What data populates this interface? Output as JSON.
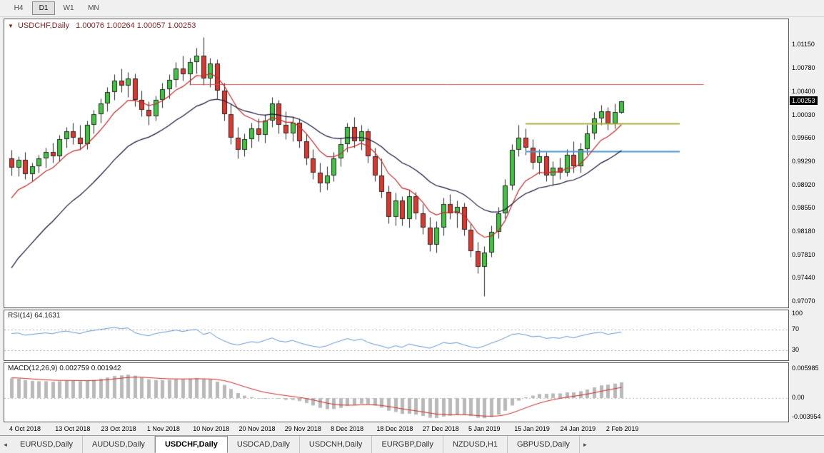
{
  "toolbar": {
    "timeframes": [
      {
        "label": "H4",
        "active": false
      },
      {
        "label": "D1",
        "active": true
      },
      {
        "label": "W1",
        "active": false
      },
      {
        "label": "MN",
        "active": false
      }
    ]
  },
  "chart": {
    "symbol_label": "USDCHF,Daily",
    "ohlc_label": "1.00076 1.00264 1.00057 1.00253",
    "current_price": "1.00253",
    "price_axis": [
      "1.01150",
      "1.00780",
      "1.00400",
      "1.00030",
      "0.99660",
      "0.99290",
      "0.98920",
      "0.98550",
      "0.98180",
      "0.97810",
      "0.97440",
      "0.97070"
    ]
  },
  "rsi_panel": {
    "label": "RSI(14) 64.1631",
    "axis": [
      "100",
      "70",
      "30"
    ]
  },
  "macd_panel": {
    "label": "MACD(12,26,9) 0.002759 0.001942",
    "axis": [
      "0.005985",
      "0.00",
      "-0.003954"
    ]
  },
  "date_axis": [
    "4 Oct 2018",
    "13 Oct 2018",
    "23 Oct 2018",
    "1 Nov 2018",
    "10 Nov 2018",
    "20 Nov 2018",
    "29 Nov 2018",
    "8 Dec 2018",
    "18 Dec 2018",
    "27 Dec 2018",
    "5 Jan 2019",
    "15 Jan 2019",
    "24 Jan 2019",
    "2 Feb 2019"
  ],
  "bottom_tabs": {
    "left_arrow": "◄",
    "right_arrow": "►",
    "tabs": [
      {
        "label": "EURUSD,Daily",
        "active": false
      },
      {
        "label": "AUDUSD,Daily",
        "active": false
      },
      {
        "label": "USDCHF,Daily",
        "active": true
      },
      {
        "label": "USDCAD,Daily",
        "active": false
      },
      {
        "label": "USDCNH,Daily",
        "active": false
      },
      {
        "label": "EURGBP,Daily",
        "active": false
      },
      {
        "label": "NZDUSD,H1",
        "active": false
      },
      {
        "label": "GBPUSD,Daily",
        "active": false
      }
    ]
  },
  "chart_data": {
    "type": "candlestick",
    "symbol": "USDCHF",
    "timeframe": "D1",
    "title": "USDCHF,Daily",
    "y_axis": {
      "top": 1.0115,
      "bottom": 0.9707
    },
    "current": {
      "open": 1.00076,
      "high": 1.00264,
      "low": 1.00057,
      "close": 1.00253
    },
    "candle_colors": {
      "bull_fill": "#3fc53f",
      "bear_fill": "#e0372c",
      "outline": "#262626"
    },
    "ohlc": {
      "open": [
        0.9935,
        0.992,
        0.9932,
        0.991,
        0.9922,
        0.9935,
        0.9945,
        0.9938,
        0.9965,
        0.9978,
        0.9968,
        0.9958,
        0.9988,
        1.0005,
        1.0022,
        1.004,
        1.0058,
        1.005,
        1.0062,
        1.0028,
        1.0012,
        1.0002,
        1.0028,
        1.0045,
        1.006,
        1.0078,
        1.0068,
        1.0088,
        1.0098,
        1.0062,
        1.0085,
        1.0042,
        1.0005,
        0.9968,
        0.9948,
        0.9965,
        0.9982,
        0.9972,
        0.9995,
        1.0022,
        0.9988,
        0.9975,
        0.9992,
        0.9962,
        0.9935,
        0.9912,
        0.9895,
        0.9908,
        0.9935,
        0.9958,
        0.9985,
        0.9962,
        0.9978,
        0.9938,
        0.9908,
        0.9882,
        0.9842,
        0.9868,
        0.9838,
        0.9875,
        0.9848,
        0.9825,
        0.9798,
        0.9825,
        0.9862,
        0.9848,
        0.9858,
        0.9822,
        0.9788,
        0.9762,
        0.9785,
        0.9818,
        0.9848,
        0.9892,
        0.9948,
        0.9968,
        0.9952,
        0.9928,
        0.9938,
        0.9908,
        0.992,
        0.9912,
        0.994,
        0.9922,
        0.995,
        0.9975,
        0.9998,
        1.001,
        0.999,
        1.00076
      ],
      "high": [
        0.9948,
        0.9938,
        0.9945,
        0.9928,
        0.994,
        0.9952,
        0.996,
        0.9972,
        0.9985,
        0.9992,
        0.9988,
        0.9995,
        1.0012,
        1.003,
        1.0048,
        1.0068,
        1.0078,
        1.0072,
        1.007,
        1.0042,
        1.0025,
        1.0035,
        1.0055,
        1.0068,
        1.0088,
        1.0098,
        1.0095,
        1.011,
        1.0128,
        1.0095,
        1.0092,
        1.0055,
        1.0022,
        0.9985,
        0.9975,
        0.9992,
        0.9998,
        1.0005,
        1.0032,
        1.0028,
        1.001,
        1.0002,
        0.9998,
        0.9975,
        0.995,
        0.9928,
        0.9922,
        0.9945,
        0.9968,
        0.9992,
        1.0,
        0.9988,
        0.9982,
        0.9952,
        0.9935,
        0.9892,
        0.988,
        0.9875,
        0.9885,
        0.9882,
        0.9862,
        0.9842,
        0.9835,
        0.9872,
        0.9878,
        0.9868,
        0.9865,
        0.9832,
        0.9802,
        0.9795,
        0.9828,
        0.9858,
        0.9902,
        0.9958,
        0.9988,
        0.9982,
        0.9965,
        0.995,
        0.9945,
        0.993,
        0.9936,
        0.995,
        0.9962,
        0.996,
        0.9988,
        1.0008,
        1.002,
        1.0016,
        1.0022,
        1.00264
      ],
      "low": [
        0.9908,
        0.9906,
        0.9902,
        0.9898,
        0.9912,
        0.992,
        0.9928,
        0.993,
        0.9952,
        0.9958,
        0.9948,
        0.995,
        0.9975,
        0.9992,
        1.001,
        1.0028,
        1.004,
        1.0032,
        1.0018,
        1.0002,
        0.9988,
        0.9995,
        1.0015,
        1.003,
        1.0048,
        1.0058,
        1.0052,
        1.007,
        1.0052,
        1.0048,
        1.003,
        0.9995,
        0.9958,
        0.9935,
        0.9938,
        0.9952,
        0.9962,
        0.996,
        0.9985,
        0.9975,
        0.9965,
        0.9962,
        0.9952,
        0.9925,
        0.9902,
        0.9882,
        0.9885,
        0.9898,
        0.9922,
        0.9945,
        0.9952,
        0.9948,
        0.9928,
        0.9898,
        0.9872,
        0.9832,
        0.9828,
        0.9828,
        0.9825,
        0.9838,
        0.9815,
        0.9788,
        0.9785,
        0.9812,
        0.9838,
        0.9825,
        0.9812,
        0.9778,
        0.9752,
        0.9716,
        0.9778,
        0.9808,
        0.984,
        0.9885,
        0.9938,
        0.994,
        0.9918,
        0.991,
        0.9898,
        0.9892,
        0.9902,
        0.9906,
        0.9912,
        0.9912,
        0.994,
        0.9965,
        0.9988,
        0.998,
        0.9982,
        1.00057
      ],
      "close": [
        0.992,
        0.9932,
        0.991,
        0.9922,
        0.9935,
        0.9945,
        0.9938,
        0.9965,
        0.9978,
        0.9968,
        0.9958,
        0.9988,
        1.0005,
        1.0022,
        1.004,
        1.0058,
        1.005,
        1.0062,
        1.0028,
        1.0012,
        1.0002,
        1.0028,
        1.0045,
        1.006,
        1.0078,
        1.0068,
        1.0088,
        1.0098,
        1.0062,
        1.0085,
        1.0042,
        1.0005,
        0.9968,
        0.9948,
        0.9965,
        0.9982,
        0.9972,
        0.9995,
        1.0022,
        0.9988,
        0.9975,
        0.9992,
        0.9962,
        0.9935,
        0.9912,
        0.9895,
        0.9908,
        0.9935,
        0.9958,
        0.9985,
        0.9962,
        0.9978,
        0.9938,
        0.9908,
        0.9882,
        0.9842,
        0.9868,
        0.9838,
        0.9875,
        0.9848,
        0.9825,
        0.9798,
        0.9825,
        0.9862,
        0.9848,
        0.9858,
        0.9822,
        0.9788,
        0.9762,
        0.9785,
        0.9818,
        0.9848,
        0.9892,
        0.9948,
        0.9968,
        0.9952,
        0.9928,
        0.9938,
        0.9908,
        0.992,
        0.9912,
        0.994,
        0.9922,
        0.995,
        0.9975,
        0.9998,
        1.001,
        0.999,
        1.0008,
        1.00253
      ]
    },
    "moving_averages": [
      {
        "name": "fast-ma",
        "alpha": 0.22,
        "seed": 0.9858,
        "color": "#c62828"
      },
      {
        "name": "slow-ma",
        "alpha": 0.09,
        "seed": 0.9745,
        "color": "#15153a"
      }
    ],
    "horizontal_lines": [
      {
        "name": "resistance-line-red",
        "price": 1.0053,
        "from_bar": 26,
        "to_bar": 101,
        "color": "#df4b4b",
        "width": 1
      },
      {
        "name": "resistance-line-yellow",
        "price": 0.999,
        "from_bar": 75,
        "to_bar": 97.5,
        "color": "#aab03e",
        "width": 2
      },
      {
        "name": "support-line-blue",
        "price": 0.9946,
        "from_bar": 75,
        "to_bar": 97.5,
        "color": "#4e96c8",
        "width": 2
      }
    ],
    "rsi": {
      "period": 14,
      "value": 64.1631,
      "levels": [
        70,
        30
      ],
      "color": "#6394cc"
    },
    "macd": {
      "fast": 12,
      "slow": 26,
      "signal": 9,
      "value": 0.002759,
      "signal_value": 0.001942,
      "histogram_color": "#b9b9b9",
      "signal_color": "#c62828"
    }
  }
}
